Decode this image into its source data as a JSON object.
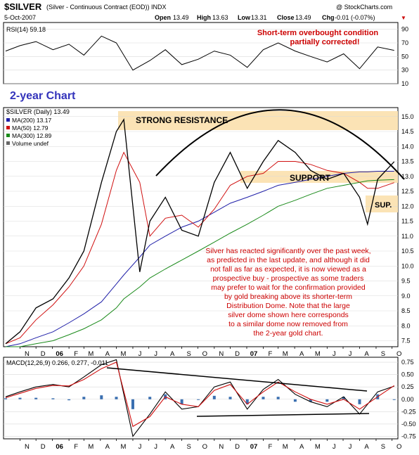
{
  "header": {
    "symbol": "$SILVER",
    "description": "(Silver - Continuous Contract (EOD)) INDX",
    "copyright": "@ StockCharts.com",
    "date": "5-Oct-2007",
    "open_label": "Open",
    "open": "13.49",
    "high_label": "High",
    "high": "13.63",
    "low_label": "Low",
    "low": "13.31",
    "close_label": "Close",
    "close": "13.49",
    "chg_label": "Chg",
    "chg": "-0.01 (-0.07%)",
    "chg_marker": "▼"
  },
  "colors": {
    "ma200": "#1f1fa8",
    "ma50": "#d01010",
    "ma300": "#1a8a1a",
    "annotation": "#cc0000",
    "title_blue": "#3333bb",
    "zone": "#fbe3b5",
    "macd_hist": "#3a6fb0"
  },
  "chart_data": [
    {
      "type": "line",
      "name": "rsi",
      "label": "RSI(14) 59.18",
      "ylim": [
        10,
        100
      ],
      "yticks": [
        10,
        30,
        50,
        70,
        90
      ],
      "x": [
        "2005-10-05",
        "2005-11-01",
        "2005-12-01",
        "2006-01-02",
        "2006-02-01",
        "2006-03-01",
        "2006-04-03",
        "2006-05-01",
        "2006-06-01",
        "2006-07-03",
        "2006-08-01",
        "2006-09-01",
        "2006-10-02",
        "2006-11-01",
        "2006-12-01",
        "2007-01-02",
        "2007-02-01",
        "2007-03-01",
        "2007-04-02",
        "2007-05-01",
        "2007-06-01",
        "2007-07-02",
        "2007-08-01",
        "2007-09-04",
        "2007-10-05"
      ],
      "values": [
        58,
        66,
        72,
        60,
        68,
        52,
        80,
        70,
        30,
        44,
        60,
        38,
        46,
        58,
        52,
        34,
        60,
        70,
        58,
        50,
        42,
        54,
        32,
        64,
        59
      ]
    },
    {
      "type": "line",
      "name": "price",
      "label": "$SILVER (Daily) 13.49",
      "ylim": [
        7.3,
        15.3
      ],
      "yticks": [
        7.5,
        8.0,
        8.5,
        9.0,
        9.5,
        10.0,
        10.5,
        11.0,
        11.5,
        12.0,
        12.5,
        13.0,
        13.5,
        14.0,
        14.5,
        15.0
      ],
      "x": [
        "2005-10-05",
        "2005-11-01",
        "2005-12-01",
        "2006-01-02",
        "2006-02-01",
        "2006-03-01",
        "2006-04-03",
        "2006-05-01",
        "2006-05-15",
        "2006-06-14",
        "2006-07-03",
        "2006-08-01",
        "2006-09-01",
        "2006-10-02",
        "2006-11-01",
        "2006-12-01",
        "2007-01-02",
        "2007-02-01",
        "2007-03-01",
        "2007-04-02",
        "2007-05-01",
        "2007-06-01",
        "2007-07-02",
        "2007-08-01",
        "2007-08-16",
        "2007-09-04",
        "2007-10-05"
      ],
      "series": [
        {
          "name": "Price",
          "values": [
            7.4,
            7.8,
            8.6,
            8.9,
            9.6,
            10.5,
            12.8,
            14.5,
            14.9,
            9.8,
            11.5,
            12.3,
            11.2,
            11.0,
            12.8,
            13.8,
            12.6,
            13.5,
            14.2,
            13.8,
            13.2,
            12.9,
            13.1,
            12.3,
            11.4,
            12.9,
            13.49
          ]
        },
        {
          "name": "MA(200) 13.17",
          "values": [
            7.3,
            7.4,
            7.6,
            7.8,
            8.1,
            8.4,
            8.8,
            9.4,
            9.7,
            10.3,
            10.7,
            11.0,
            11.3,
            11.5,
            11.8,
            12.1,
            12.3,
            12.5,
            12.7,
            12.8,
            12.9,
            13.0,
            13.1,
            13.15,
            13.15,
            13.17,
            13.17
          ]
        },
        {
          "name": "MA(50) 12.79",
          "values": [
            7.4,
            7.6,
            8.2,
            8.7,
            9.3,
            10.0,
            11.4,
            13.2,
            13.8,
            12.8,
            11.0,
            11.6,
            11.7,
            11.3,
            11.9,
            12.7,
            13.0,
            13.1,
            13.5,
            13.5,
            13.4,
            13.2,
            13.1,
            12.8,
            12.6,
            12.6,
            12.79
          ]
        },
        {
          "name": "MA(300) 12.89",
          "values": [
            7.3,
            7.3,
            7.4,
            7.5,
            7.7,
            7.9,
            8.2,
            8.6,
            8.9,
            9.3,
            9.6,
            9.9,
            10.2,
            10.5,
            10.8,
            11.1,
            11.4,
            11.7,
            12.0,
            12.2,
            12.4,
            12.6,
            12.7,
            12.8,
            12.85,
            12.87,
            12.89
          ]
        }
      ],
      "legend": [
        "MA(200) 13.17",
        "MA(50) 12.79",
        "MA(300) 12.89",
        "Volume undef"
      ]
    },
    {
      "type": "line",
      "name": "macd",
      "label": "MACD(12,26,9) 0.266, 0.277, -0.011",
      "ylim": [
        -0.8,
        0.85
      ],
      "yticks": [
        -0.75,
        -0.5,
        -0.25,
        0.0,
        0.25,
        0.5,
        0.75
      ],
      "x": [
        "2005-10-05",
        "2005-11-01",
        "2005-12-01",
        "2006-01-02",
        "2006-02-01",
        "2006-03-01",
        "2006-04-03",
        "2006-05-01",
        "2006-06-01",
        "2006-07-03",
        "2006-08-01",
        "2006-09-01",
        "2006-10-02",
        "2006-11-01",
        "2006-12-01",
        "2007-01-02",
        "2007-02-01",
        "2007-03-01",
        "2007-04-02",
        "2007-05-01",
        "2007-06-01",
        "2007-07-02",
        "2007-08-01",
        "2007-09-04",
        "2007-10-05"
      ],
      "series": [
        {
          "name": "MACD",
          "values": [
            0.05,
            0.15,
            0.25,
            0.3,
            0.25,
            0.45,
            0.7,
            0.8,
            -0.75,
            -0.3,
            0.15,
            -0.2,
            -0.15,
            0.25,
            0.35,
            -0.2,
            0.2,
            0.4,
            0.1,
            -0.05,
            -0.15,
            0.05,
            -0.3,
            0.15,
            0.266
          ]
        },
        {
          "name": "Signal",
          "values": [
            0.03,
            0.12,
            0.22,
            0.28,
            0.27,
            0.4,
            0.62,
            0.75,
            -0.55,
            -0.35,
            0.05,
            -0.1,
            -0.15,
            0.18,
            0.3,
            -0.1,
            0.15,
            0.35,
            0.15,
            0.0,
            -0.1,
            0.0,
            -0.2,
            0.05,
            0.277
          ]
        }
      ]
    }
  ],
  "x_axis": {
    "months": [
      "N",
      "D",
      "06",
      "F",
      "M",
      "A",
      "M",
      "J",
      "J",
      "A",
      "S",
      "O",
      "N",
      "D",
      "07",
      "F",
      "M",
      "A",
      "M",
      "J",
      "J",
      "A",
      "S",
      "O"
    ]
  },
  "annotations": {
    "rsi_note_line1": "Short-term overbought condition",
    "rsi_note_line2": "partially corrected!",
    "chart_title": "2-year Chart",
    "strong_resistance": "STRONG RESISTANCE",
    "support": "SUPPORT",
    "sup": "SUP.",
    "commentary": [
      "Silver has reacted significantly over the past week,",
      "as predicted in the last update, and although it did",
      "not fall as far as expected, it is now viewed as a",
      "prospective buy - prospective as some traders",
      "may prefer to wait for the confirmation provided",
      "by gold breaking above its shorter-term",
      "Distribution Dome. Note that the large",
      "silver dome shown here corresponds",
      "to a similar dome now removed from",
      "the 2-year gold chart."
    ]
  }
}
